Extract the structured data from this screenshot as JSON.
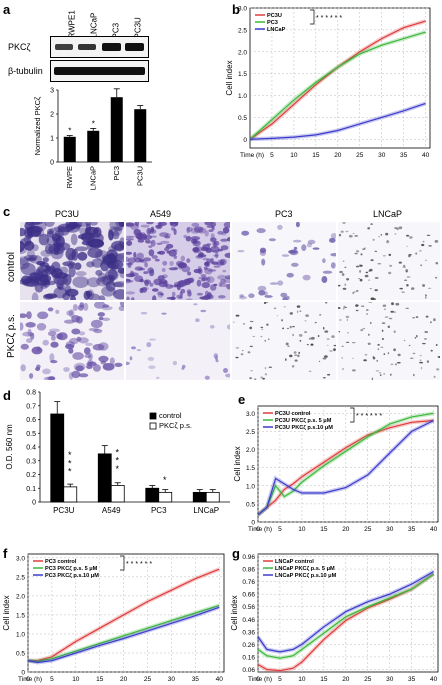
{
  "panels": {
    "a": {
      "label": "a",
      "blot_lanes": [
        "RWPE1",
        "LNCaP",
        "PC3",
        "PC3U"
      ],
      "blot_rows": [
        "PKCζ",
        "β-tubulin"
      ],
      "bar_ylabel": "Normalized PKCζ",
      "significance": [
        "*",
        "*"
      ]
    },
    "b": {
      "label": "b",
      "stars": "* * *   * * *"
    },
    "c": {
      "label": "c",
      "columns": [
        "PC3U",
        "A549",
        "PC3",
        "LNCaP"
      ],
      "rows": [
        "control",
        "PKCζ p.s."
      ]
    },
    "d": {
      "label": "d",
      "stars": [
        "*",
        "*",
        "*",
        "*",
        "*",
        "*",
        "*"
      ]
    },
    "e": {
      "label": "e",
      "stars": "* * *   * * *"
    },
    "f": {
      "label": "f",
      "stars": "* * *   * * *"
    },
    "g": {
      "label": "g"
    }
  },
  "chart_data": [
    {
      "id": "a_bar",
      "type": "bar",
      "categories": [
        "RWPE",
        "LNCaP",
        "PC3",
        "PC3U"
      ],
      "values": [
        1.05,
        1.3,
        2.7,
        2.2
      ],
      "errors": [
        0.05,
        0.1,
        0.35,
        0.15
      ],
      "ylabel": "Normalized PKCζ",
      "ylim": [
        0,
        3
      ],
      "yticks": [
        "0",
        "1",
        "2",
        "3"
      ]
    },
    {
      "id": "b",
      "type": "line",
      "xlabel": "Time (h)",
      "ylabel": "Cell index",
      "xlim": [
        0,
        41
      ],
      "ylim": [
        -0.2,
        3.0
      ],
      "xticks": [
        5,
        10,
        15,
        20,
        25,
        30,
        35,
        40
      ],
      "yticks": [
        0,
        0.5,
        1.0,
        1.5,
        2.0,
        2.5,
        3.0
      ],
      "ytick_labels": [
        "0",
        "0.5",
        "1.0",
        "1.5",
        "2.0",
        "2.5",
        "3.0"
      ],
      "series": [
        {
          "name": "PC3U",
          "color": "#e03c3c",
          "x": [
            0,
            5,
            10,
            15,
            20,
            25,
            30,
            35,
            40
          ],
          "y": [
            0,
            0.35,
            0.8,
            1.25,
            1.65,
            2.0,
            2.3,
            2.55,
            2.7
          ]
        },
        {
          "name": "PC3",
          "color": "#3cb83c",
          "x": [
            0,
            5,
            10,
            15,
            20,
            25,
            30,
            35,
            40
          ],
          "y": [
            0,
            0.45,
            0.9,
            1.3,
            1.65,
            1.95,
            2.15,
            2.3,
            2.45
          ]
        },
        {
          "name": "LNCaP",
          "color": "#3c3ccc",
          "x": [
            0,
            5,
            10,
            15,
            20,
            25,
            30,
            35,
            40
          ],
          "y": [
            0,
            0.02,
            0.05,
            0.1,
            0.2,
            0.35,
            0.5,
            0.65,
            0.82
          ]
        }
      ]
    },
    {
      "id": "d",
      "type": "bar",
      "categories": [
        "PC3U",
        "A549",
        "PC3",
        "LNCaP"
      ],
      "ylabel": "O.D. 560 nm",
      "ylim": [
        0,
        0.8
      ],
      "yticks": [
        "0",
        "0.1",
        "0.2",
        "0.3",
        "0.4",
        "0.5",
        "0.6",
        "0.7",
        "0.8"
      ],
      "series": [
        {
          "name": "control",
          "color": "#000000",
          "values": [
            0.64,
            0.35,
            0.1,
            0.07
          ],
          "errors": [
            0.09,
            0.06,
            0.02,
            0.02
          ]
        },
        {
          "name": "PKCζ p.s.",
          "color": "#ffffff",
          "values": [
            0.11,
            0.12,
            0.07,
            0.07
          ],
          "errors": [
            0.02,
            0.02,
            0.02,
            0.02
          ]
        }
      ]
    },
    {
      "id": "e",
      "type": "line",
      "xlabel": "Time (h)",
      "ylabel": "Cell index",
      "xlim": [
        0,
        41
      ],
      "ylim": [
        0.0,
        3.2
      ],
      "xticks": [
        0,
        5,
        10,
        15,
        20,
        25,
        30,
        35,
        40
      ],
      "yticks": [
        0,
        0.5,
        1.0,
        1.5,
        2.0,
        2.5,
        3.0
      ],
      "ytick_labels": [
        "0",
        "0.5",
        "1.0",
        "1.5",
        "2.0",
        "2.5",
        "3.0"
      ],
      "series": [
        {
          "name": "PC3U control",
          "color": "#e03c3c",
          "x": [
            0,
            2,
            4,
            6,
            8,
            10,
            15,
            20,
            25,
            30,
            35,
            40
          ],
          "y": [
            0.2,
            0.4,
            0.6,
            0.9,
            1.05,
            1.25,
            1.65,
            2.05,
            2.4,
            2.6,
            2.75,
            2.8
          ]
        },
        {
          "name": "PC3U PKCζ p.s. 5 μM",
          "color": "#3cb83c",
          "x": [
            0,
            2,
            4,
            6,
            8,
            10,
            15,
            20,
            25,
            30,
            35,
            40
          ],
          "y": [
            0.2,
            0.4,
            1.0,
            0.7,
            0.85,
            1.1,
            1.55,
            1.95,
            2.35,
            2.7,
            2.9,
            3.0
          ]
        },
        {
          "name": "PC3U PKCζ p.s.10 μM",
          "color": "#3c3ccc",
          "x": [
            0,
            2,
            4,
            6,
            8,
            10,
            15,
            20,
            25,
            30,
            35,
            40
          ],
          "y": [
            0.2,
            0.4,
            1.2,
            1.05,
            0.9,
            0.8,
            0.8,
            0.95,
            1.3,
            1.9,
            2.5,
            2.8
          ]
        }
      ]
    },
    {
      "id": "f",
      "type": "line",
      "xlabel": "Time (h)",
      "ylabel": "Cell index",
      "xlim": [
        0,
        41
      ],
      "ylim": [
        0.0,
        3.1
      ],
      "xticks": [
        0,
        5,
        10,
        15,
        20,
        25,
        30,
        35,
        40
      ],
      "yticks": [
        0,
        0.5,
        1.0,
        1.5,
        2.0,
        2.5,
        3.0
      ],
      "ytick_labels": [
        "0",
        "0.5",
        "1.0",
        "1.5",
        "2.0",
        "2.5",
        "3.0"
      ],
      "series": [
        {
          "name": "PC3 control",
          "color": "#e03c3c",
          "x": [
            0,
            2,
            5,
            10,
            15,
            20,
            25,
            30,
            35,
            40
          ],
          "y": [
            0.3,
            0.3,
            0.4,
            0.8,
            1.15,
            1.5,
            1.85,
            2.15,
            2.45,
            2.7
          ]
        },
        {
          "name": "PC3 PKCζ p.s. 5 μM",
          "color": "#3cb83c",
          "x": [
            0,
            2,
            5,
            10,
            15,
            20,
            25,
            30,
            35,
            40
          ],
          "y": [
            0.3,
            0.28,
            0.35,
            0.55,
            0.75,
            0.95,
            1.15,
            1.35,
            1.55,
            1.75
          ]
        },
        {
          "name": "PC3 PKCζ p.s.10 μM",
          "color": "#3c3ccc",
          "x": [
            0,
            2,
            5,
            10,
            15,
            20,
            25,
            30,
            35,
            40
          ],
          "y": [
            0.3,
            0.25,
            0.3,
            0.5,
            0.7,
            0.88,
            1.08,
            1.28,
            1.48,
            1.7
          ]
        }
      ]
    },
    {
      "id": "g",
      "type": "line",
      "xlabel": "Time (h)",
      "ylabel": "Cell index",
      "xlim": [
        0,
        41
      ],
      "ylim": [
        0.04,
        0.98
      ],
      "xticks": [
        0,
        5,
        10,
        15,
        20,
        25,
        30,
        35,
        40
      ],
      "yticks": [
        0.06,
        0.16,
        0.26,
        0.36,
        0.46,
        0.56,
        0.66,
        0.76,
        0.86,
        0.96
      ],
      "ytick_labels": [
        "0.06",
        "0.16",
        "0.26",
        "0.36",
        "0.46",
        "0.56",
        "0.66",
        "0.76",
        "0.86",
        "0.96"
      ],
      "series": [
        {
          "name": "LNCaP control",
          "color": "#e03c3c",
          "x": [
            0,
            2,
            5,
            8,
            10,
            15,
            20,
            25,
            30,
            35,
            40
          ],
          "y": [
            0.1,
            0.06,
            0.05,
            0.07,
            0.12,
            0.3,
            0.45,
            0.55,
            0.62,
            0.7,
            0.82
          ]
        },
        {
          "name": "LNCaP PKCζ p.s. 5 μM",
          "color": "#3cb83c",
          "x": [
            0,
            2,
            5,
            8,
            10,
            15,
            20,
            25,
            30,
            35,
            40
          ],
          "y": [
            0.22,
            0.17,
            0.15,
            0.17,
            0.22,
            0.35,
            0.48,
            0.56,
            0.63,
            0.7,
            0.82
          ]
        },
        {
          "name": "LNCaP PKCζ p.s.10 μM",
          "color": "#3c3ccc",
          "x": [
            0,
            2,
            5,
            8,
            10,
            15,
            20,
            25,
            30,
            35,
            40
          ],
          "y": [
            0.32,
            0.22,
            0.2,
            0.22,
            0.26,
            0.4,
            0.52,
            0.6,
            0.66,
            0.74,
            0.84
          ]
        }
      ]
    }
  ]
}
